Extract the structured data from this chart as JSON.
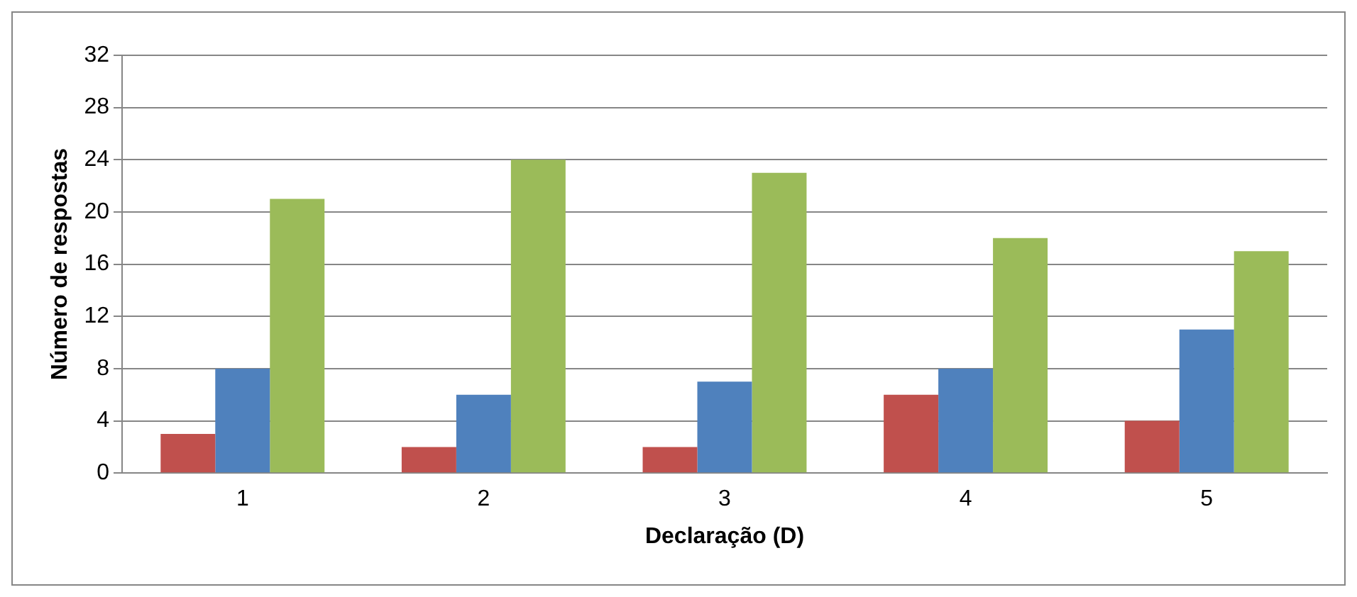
{
  "chart_data": {
    "type": "bar",
    "xlabel": "Declaração (D)",
    "ylabel": "Número de respostas",
    "categories": [
      "1",
      "2",
      "3",
      "4",
      "5"
    ],
    "series": [
      {
        "color": "#c0504d",
        "values": [
          3,
          2,
          2,
          6,
          4
        ]
      },
      {
        "color": "#4f81bd",
        "values": [
          8,
          6,
          7,
          8,
          11
        ]
      },
      {
        "color": "#9bbb59",
        "values": [
          21,
          24,
          23,
          18,
          17
        ]
      }
    ],
    "ylim": [
      0,
      32
    ],
    "yticks": [
      0,
      4,
      8,
      12,
      16,
      20,
      24,
      28,
      32
    ],
    "grid": "y",
    "legend": false
  }
}
